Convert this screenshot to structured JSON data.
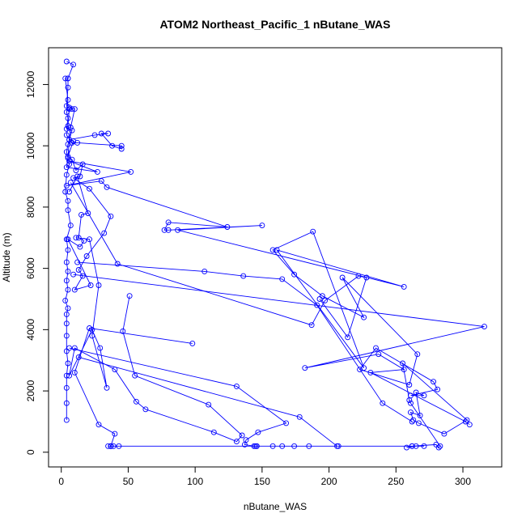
{
  "chart_data": {
    "type": "line",
    "title": "ATOM2 Northeast_Pacific_1 nButane_WAS",
    "xlabel": "nButane_WAS",
    "ylabel": "Altitude (m)",
    "xlim": [
      -9.5,
      329
    ],
    "ylim": [
      -480,
      13200
    ],
    "x_ticks": [
      0,
      50,
      100,
      150,
      200,
      250,
      300
    ],
    "y_ticks": [
      0,
      2000,
      4000,
      6000,
      8000,
      10000,
      12000
    ],
    "x_tick_labels": [
      "0",
      "50",
      "100",
      "150",
      "200",
      "250",
      "300"
    ],
    "y_tick_labels": [
      "0",
      "2000",
      "4000",
      "6000",
      "8000",
      "10000",
      "12000"
    ],
    "series_color": "#0000ff",
    "marker": "open-circle",
    "grid": false,
    "legend": "none",
    "series": [
      {
        "points": [
          [
            4,
            12750
          ],
          [
            9,
            12650
          ],
          [
            5,
            12200
          ],
          [
            5,
            11900
          ],
          [
            4,
            11300
          ],
          [
            6,
            11200
          ],
          [
            5,
            10650
          ],
          [
            4,
            10350
          ],
          [
            8,
            10100
          ],
          [
            12,
            10100
          ],
          [
            45,
            10000
          ],
          [
            45,
            9900
          ],
          [
            38,
            10000
          ],
          [
            30,
            10400
          ],
          [
            35,
            10400
          ],
          [
            25,
            10350
          ],
          [
            6,
            10200
          ],
          [
            5,
            9600
          ],
          [
            4,
            9300
          ],
          [
            27,
            9150
          ],
          [
            6,
            9500
          ],
          [
            52,
            9150
          ],
          [
            4,
            8700
          ],
          [
            30,
            8850
          ],
          [
            34,
            8650
          ],
          [
            124,
            7350
          ],
          [
            80,
            7500
          ],
          [
            77,
            7250
          ],
          [
            80,
            7250
          ],
          [
            150,
            7400
          ],
          [
            87,
            7250
          ],
          [
            256,
            5400
          ],
          [
            161,
            6600
          ],
          [
            226,
            2750
          ],
          [
            188,
            7200
          ],
          [
            158,
            6600
          ],
          [
            174,
            5800
          ],
          [
            195,
            5100
          ],
          [
            226,
            4400
          ],
          [
            210,
            5700
          ],
          [
            266,
            3200
          ],
          [
            260,
            2200
          ],
          [
            223,
            2700
          ],
          [
            235,
            3400
          ],
          [
            278,
            2300
          ],
          [
            281,
            2050
          ],
          [
            261,
            1850
          ],
          [
            271,
            1850
          ],
          [
            265,
            1950
          ],
          [
            268,
            1200
          ],
          [
            261,
            1300
          ],
          [
            263,
            1050
          ],
          [
            267,
            950
          ],
          [
            286,
            600
          ],
          [
            303,
            1050
          ],
          [
            255,
            2900
          ],
          [
            260,
            1700
          ],
          [
            261,
            1600
          ],
          [
            283,
            200
          ],
          [
            282,
            150
          ],
          [
            280,
            250
          ],
          [
            262,
            200
          ],
          [
            271,
            200
          ],
          [
            265,
            200
          ],
          [
            258,
            150
          ],
          [
            262,
            200
          ],
          [
            185,
            200
          ],
          [
            174,
            200
          ],
          [
            165,
            200
          ],
          [
            158,
            200
          ],
          [
            207,
            200
          ],
          [
            146,
            200
          ],
          [
            145,
            200
          ],
          [
            146,
            200
          ],
          [
            35,
            200
          ],
          [
            39,
            200
          ],
          [
            43,
            200
          ],
          [
            37,
            200
          ],
          [
            37,
            200
          ]
        ]
      },
      {
        "points": [
          [
            5,
            12200
          ],
          [
            3,
            12200
          ],
          [
            5,
            11500
          ],
          [
            4,
            11100
          ],
          [
            5,
            10900
          ],
          [
            4,
            10550
          ],
          [
            8,
            10500
          ],
          [
            5,
            10050
          ],
          [
            4,
            9800
          ],
          [
            6,
            9400
          ],
          [
            4,
            9050
          ],
          [
            3,
            8500
          ],
          [
            5,
            8200
          ],
          [
            5,
            7900
          ],
          [
            7,
            7400
          ],
          [
            4,
            6950
          ],
          [
            5,
            6600
          ],
          [
            4,
            6200
          ],
          [
            5,
            5900
          ],
          [
            4,
            5600
          ],
          [
            5,
            5300
          ],
          [
            3,
            4950
          ],
          [
            5,
            4700
          ],
          [
            4,
            4500
          ],
          [
            4,
            4200
          ],
          [
            4,
            3800
          ],
          [
            4,
            3300
          ],
          [
            5,
            2900
          ],
          [
            4,
            2500
          ],
          [
            4,
            2100
          ],
          [
            4,
            1600
          ],
          [
            4,
            1050
          ]
        ]
      },
      {
        "points": [
          [
            6,
            11250
          ],
          [
            8,
            11200
          ],
          [
            10,
            11200
          ],
          [
            7,
            10600
          ],
          [
            6,
            10200
          ],
          [
            9,
            10150
          ],
          [
            5,
            9650
          ],
          [
            8,
            9550
          ],
          [
            11,
            9200
          ],
          [
            16,
            9400
          ],
          [
            14,
            9000
          ],
          [
            9,
            8950
          ],
          [
            21,
            8600
          ],
          [
            37,
            7700
          ],
          [
            32,
            7150
          ],
          [
            19,
            6400
          ],
          [
            13,
            5950
          ],
          [
            16,
            5750
          ],
          [
            10,
            5300
          ],
          [
            22,
            5450
          ],
          [
            5,
            6950
          ],
          [
            14,
            6700
          ],
          [
            17,
            6900
          ],
          [
            13,
            7000
          ],
          [
            15,
            7750
          ],
          [
            20,
            7800
          ],
          [
            12,
            9000
          ],
          [
            6,
            8500
          ]
        ]
      },
      {
        "points": [
          [
            7,
            8800
          ],
          [
            42,
            6150
          ],
          [
            187,
            4150
          ],
          [
            197,
            4950
          ],
          [
            222,
            5750
          ],
          [
            228,
            5700
          ],
          [
            214,
            3750
          ],
          [
            193,
            5000
          ]
        ]
      },
      {
        "points": [
          [
            9,
            5800
          ],
          [
            316,
            4100
          ],
          [
            182,
            2750
          ],
          [
            237,
            3200
          ],
          [
            256,
            2700
          ],
          [
            231,
            2600
          ],
          [
            302,
            1000
          ],
          [
            305,
            900
          ]
        ]
      },
      {
        "points": [
          [
            12,
            6200
          ],
          [
            107,
            5900
          ],
          [
            136,
            5750
          ],
          [
            165,
            5650
          ],
          [
            191,
            4800
          ],
          [
            240,
            1600
          ],
          [
            262,
            1000
          ]
        ]
      },
      {
        "points": [
          [
            51,
            5100
          ],
          [
            46,
            3950
          ],
          [
            55,
            2500
          ],
          [
            110,
            1550
          ],
          [
            135,
            550
          ],
          [
            131,
            350
          ],
          [
            114,
            650
          ],
          [
            63,
            1400
          ],
          [
            56,
            1650
          ],
          [
            40,
            2700
          ],
          [
            10,
            3400
          ],
          [
            6,
            2500
          ],
          [
            23,
            4000
          ],
          [
            29,
            3400
          ],
          [
            34,
            2100
          ],
          [
            23,
            3800
          ],
          [
            28,
            5450
          ],
          [
            21,
            6950
          ],
          [
            11,
            7000
          ]
        ]
      },
      {
        "points": [
          [
            98,
            3550
          ],
          [
            21,
            4050
          ],
          [
            10,
            2600
          ],
          [
            28,
            900
          ],
          [
            40,
            600
          ],
          [
            37,
            200
          ],
          [
            37,
            200
          ]
        ]
      },
      {
        "points": [
          [
            6,
            3400
          ],
          [
            131,
            2150
          ],
          [
            168,
            950
          ],
          [
            147,
            650
          ],
          [
            138,
            400
          ],
          [
            137,
            250
          ],
          [
            144,
            200
          ]
        ]
      },
      {
        "points": [
          [
            13,
            3100
          ],
          [
            178,
            1150
          ],
          [
            206,
            200
          ]
        ]
      }
    ]
  }
}
